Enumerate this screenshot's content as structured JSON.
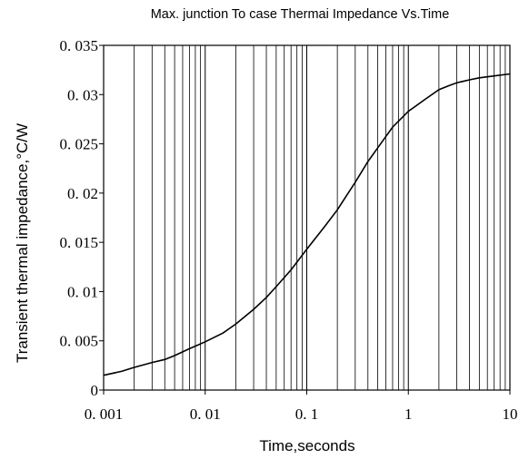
{
  "chart_data": {
    "type": "line",
    "title": "Max. junction To case Thermai Impedance Vs.Time",
    "xlabel": "Time,seconds",
    "ylabel": "Transient thermal impedance,°C/W",
    "x_scale": "log",
    "xlim": [
      0.001,
      10
    ],
    "ylim": [
      0,
      0.035
    ],
    "grid": true,
    "x_ticks": [
      "0. 001",
      "0. 01",
      "0. 1",
      "1",
      "10"
    ],
    "y_ticks": [
      "0",
      "0. 005",
      "0. 01",
      "0. 015",
      "0. 02",
      "0. 025",
      "0. 03",
      "0. 035"
    ],
    "series": [
      {
        "x": [
          0.001,
          0.0015,
          0.002,
          0.003,
          0.004,
          0.005,
          0.007,
          0.01,
          0.015,
          0.02,
          0.03,
          0.04,
          0.05,
          0.07,
          0.1,
          0.15,
          0.2,
          0.3,
          0.4,
          0.5,
          0.7,
          1,
          1.5,
          2,
          2.5,
          3,
          4,
          5,
          7,
          10
        ],
        "y": [
          0.0015,
          0.0019,
          0.0023,
          0.0028,
          0.0031,
          0.0035,
          0.0042,
          0.0049,
          0.0058,
          0.0067,
          0.0082,
          0.0094,
          0.0105,
          0.0122,
          0.0143,
          0.0166,
          0.0183,
          0.0211,
          0.0232,
          0.0246,
          0.0267,
          0.0283,
          0.0296,
          0.0305,
          0.0309,
          0.0312,
          0.0315,
          0.0317,
          0.0319,
          0.0321
        ]
      }
    ]
  }
}
